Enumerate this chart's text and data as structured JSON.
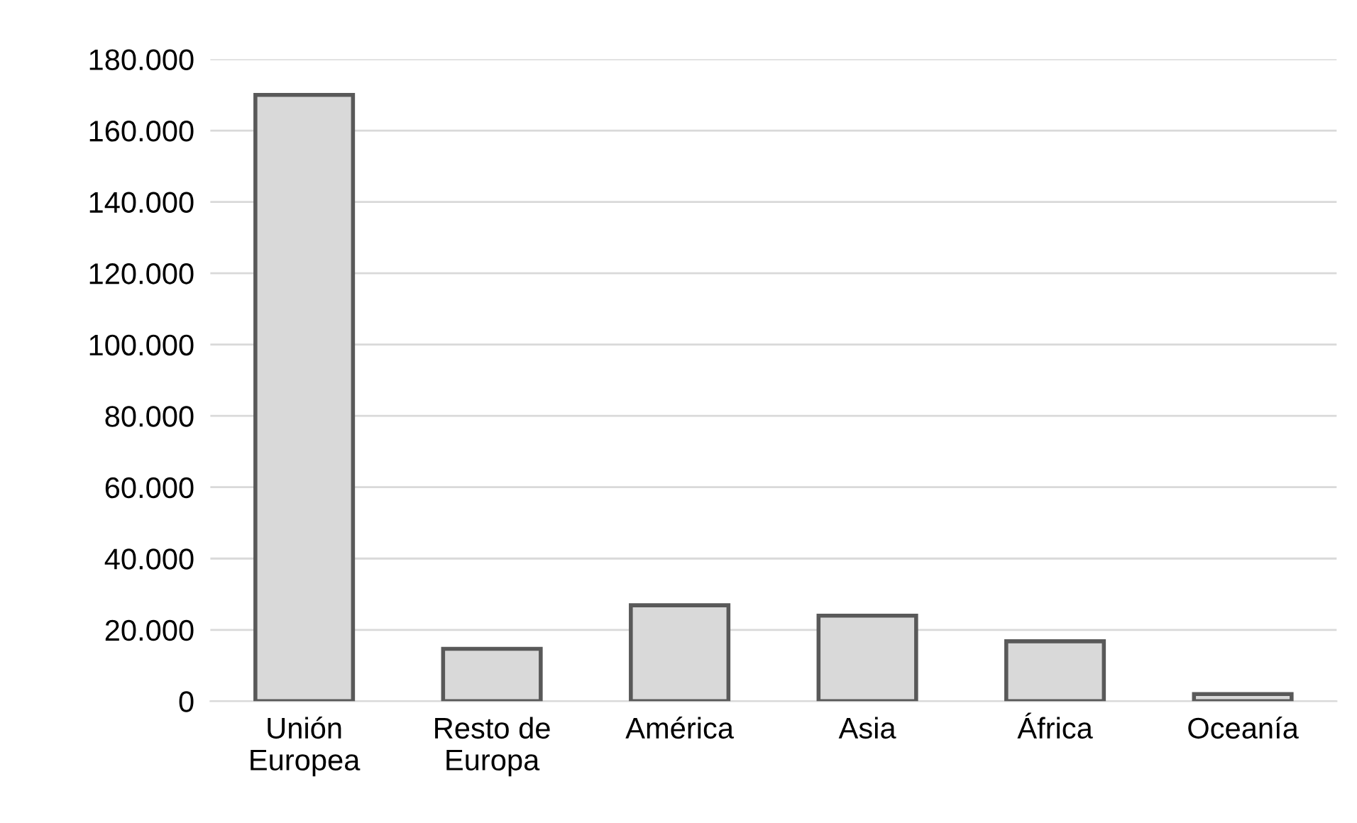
{
  "chart_data": {
    "type": "bar",
    "categories": [
      "Unión\nEuropea",
      "Resto de\nEuropa",
      "América",
      "Asia",
      "África",
      "Oceanía"
    ],
    "values": [
      170000,
      14700,
      26900,
      24000,
      16800,
      2000
    ],
    "color": "#d9d9d9",
    "ylim": [
      0,
      180000
    ],
    "yticks": [
      {
        "value": 0,
        "label": "0"
      },
      {
        "value": 20000,
        "label": "20.000"
      },
      {
        "value": 40000,
        "label": "40.000"
      },
      {
        "value": 60000,
        "label": "60.000"
      },
      {
        "value": 80000,
        "label": "80.000"
      },
      {
        "value": 100000,
        "label": "100.000"
      },
      {
        "value": 120000,
        "label": "120.000"
      },
      {
        "value": 140000,
        "label": "140.000"
      },
      {
        "value": 160000,
        "label": "160.000"
      },
      {
        "value": 180000,
        "label": "180.000"
      }
    ],
    "grid": "y"
  }
}
